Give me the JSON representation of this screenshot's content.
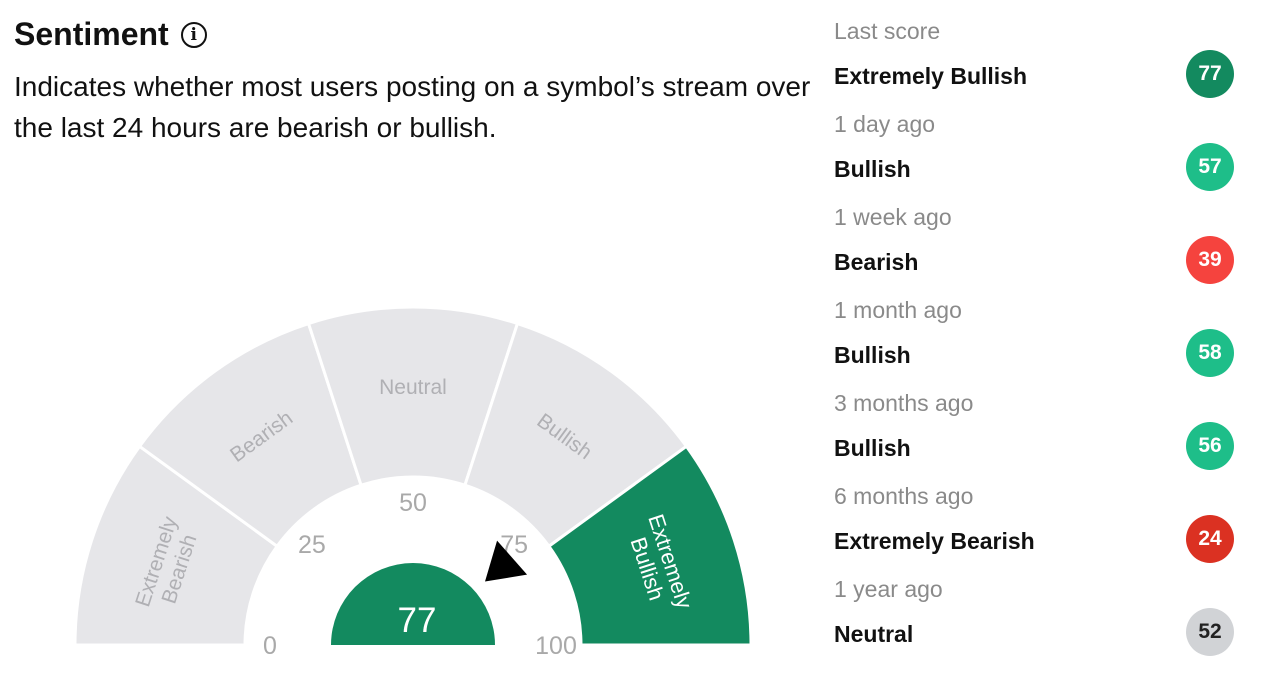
{
  "header": {
    "title": "Sentiment",
    "info_icon": "info-icon",
    "description": "Indicates whether most users posting on a symbol’s stream over the last 24 hours are bearish or bullish."
  },
  "gauge": {
    "score": 77,
    "segments": [
      {
        "label_lines": [
          "Extremely",
          "Bearish"
        ],
        "from": 0,
        "to": 20,
        "active": false
      },
      {
        "label_lines": [
          "Bearish"
        ],
        "from": 20,
        "to": 40,
        "active": false
      },
      {
        "label_lines": [
          "Neutral"
        ],
        "from": 40,
        "to": 60,
        "active": false
      },
      {
        "label_lines": [
          "Bullish"
        ],
        "from": 60,
        "to": 80,
        "active": false
      },
      {
        "label_lines": [
          "Extremely",
          "Bullish"
        ],
        "from": 80,
        "to": 100,
        "active": true
      }
    ],
    "ticks": [
      "0",
      "25",
      "50",
      "75",
      "100"
    ],
    "colors": {
      "inactive": "#e6e6e9",
      "active": "#138a5f",
      "inactive_text": "#b0b0b4",
      "tick_text": "#a9a9a9",
      "pointer": "#000000"
    }
  },
  "history": {
    "entries": [
      {
        "when": "Last score",
        "label": "Extremely Bullish",
        "score": "77",
        "color": "#138a5f"
      },
      {
        "when": "1 day ago",
        "label": "Bullish",
        "score": "57",
        "color": "#1ebe89"
      },
      {
        "when": "1 week ago",
        "label": "Bearish",
        "score": "39",
        "color": "#f5433e"
      },
      {
        "when": "1 month ago",
        "label": "Bullish",
        "score": "58",
        "color": "#1ebe89"
      },
      {
        "when": "3 months ago",
        "label": "Bullish",
        "score": "56",
        "color": "#1ebe89"
      },
      {
        "when": "6 months ago",
        "label": "Extremely Bearish",
        "score": "24",
        "color": "#db3122"
      },
      {
        "when": "1 year ago",
        "label": "Neutral",
        "score": "52",
        "color": "#d1d3d6"
      }
    ]
  }
}
